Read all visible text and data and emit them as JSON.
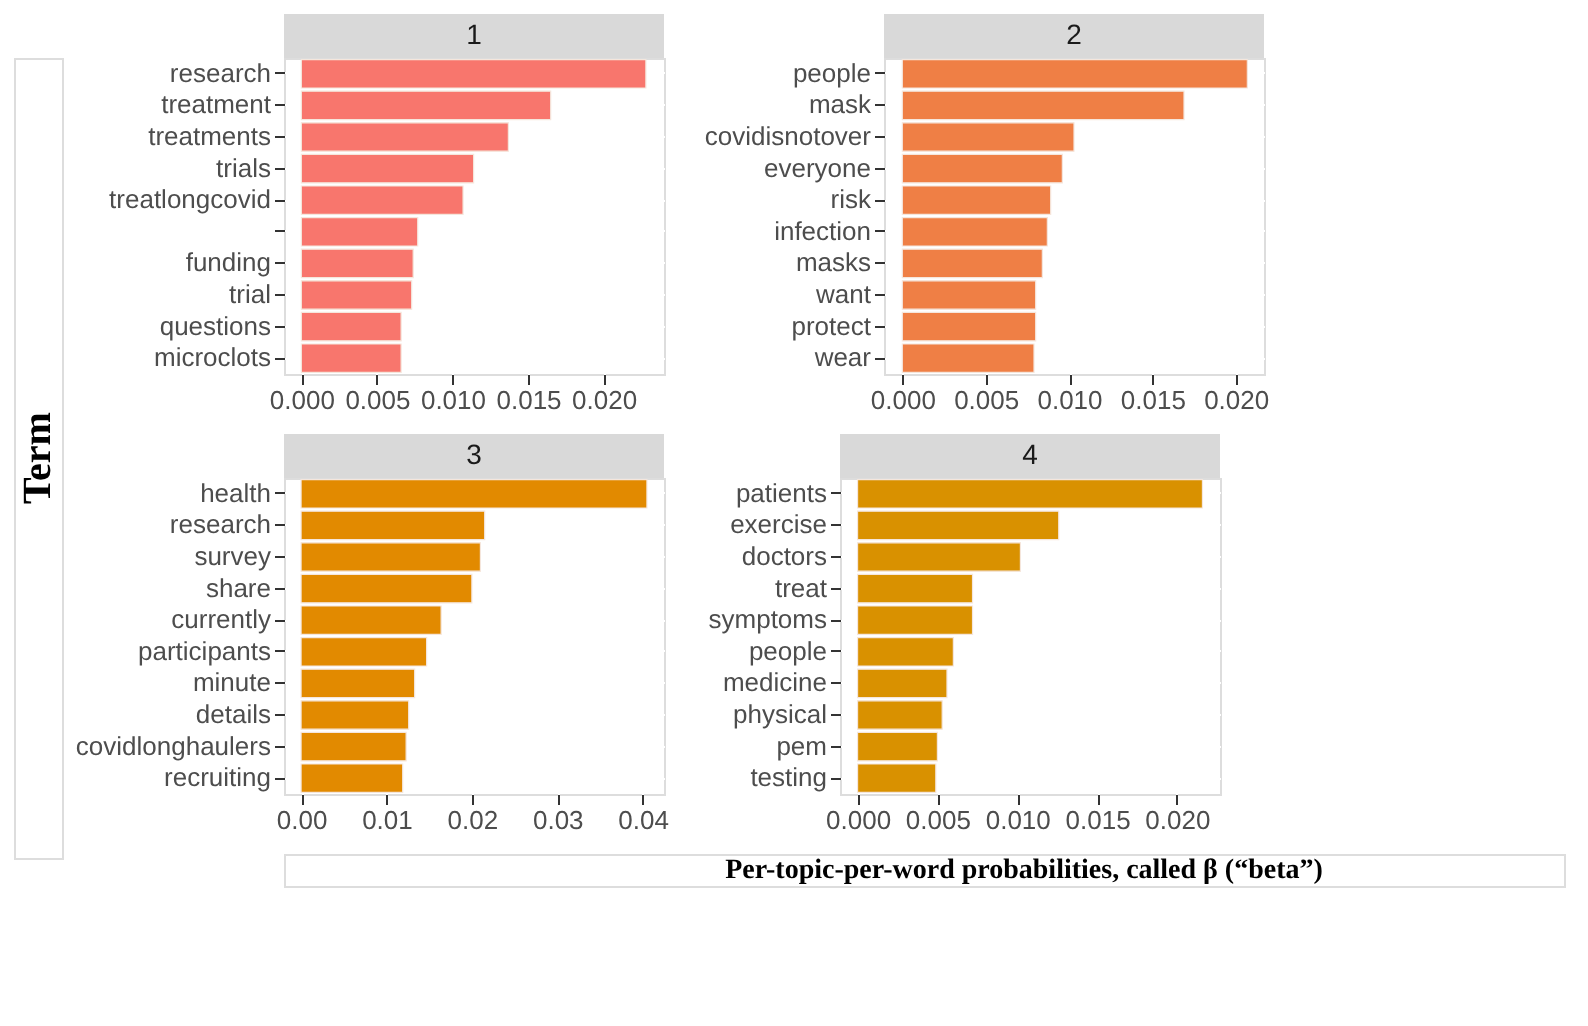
{
  "chart_data": [
    {
      "type": "bar",
      "orientation": "horizontal",
      "title": "1",
      "ylabel": "Term",
      "categories": [
        "research",
        "treatment",
        "treatments",
        "trials",
        "treatlongcovid",
        null,
        "funding",
        "trial",
        "questions",
        "microclots"
      ],
      "values": [
        0.0228,
        0.0165,
        0.0137,
        0.0114,
        0.0107,
        0.0077,
        0.0074,
        0.0073,
        0.0066,
        0.0066
      ],
      "color": "#f8766d",
      "xlim": [
        -0.00115,
        0.024
      ],
      "xticks": [
        {
          "value": 0,
          "label": "0.000"
        },
        0.005,
        {
          "value": 0.01,
          "label": "0.010"
        },
        0.015,
        {
          "value": 0.02,
          "label": "0.020"
        }
      ],
      "grid": true
    },
    {
      "type": "bar",
      "orientation": "horizontal",
      "title": "2",
      "categories": [
        "people",
        "mask",
        "covidisnotover",
        "everyone",
        "risk",
        "infection",
        "masks",
        "want",
        "protect",
        "wear"
      ],
      "values": [
        0.0207,
        0.0169,
        0.0103,
        0.0096,
        0.0089,
        0.0087,
        0.0084,
        0.008,
        0.008,
        0.0079
      ],
      "color": "#ef7f45",
      "xlim": [
        -0.0011,
        0.0217
      ],
      "xticks": [
        {
          "value": 0,
          "label": "0.000"
        },
        0.005,
        {
          "value": 0.01,
          "label": "0.010"
        },
        0.015,
        {
          "value": 0.02,
          "label": "0.020"
        }
      ],
      "grid": true
    },
    {
      "type": "bar",
      "orientation": "horizontal",
      "title": "3",
      "categories": [
        "health",
        "research",
        "survey",
        "share",
        "currently",
        "participants",
        "minute",
        "details",
        "covidlonghaulers",
        "recruiting"
      ],
      "values": [
        0.0405,
        0.0215,
        0.021,
        0.02,
        0.0164,
        0.0147,
        0.0133,
        0.0126,
        0.0123,
        0.0119
      ],
      "color": "#e28a00",
      "xlim": [
        -0.002,
        0.0425
      ],
      "xticks": [
        {
          "value": 0,
          "label": "0.00"
        },
        0.01,
        0.02,
        0.03,
        0.04
      ],
      "grid": true
    },
    {
      "type": "bar",
      "orientation": "horizontal",
      "title": "4",
      "xlabel": "Per-topic-per-word probabilities, called β (“beta”)",
      "categories": [
        "patients",
        "exercise",
        "doctors",
        "treat",
        "symptoms",
        "people",
        "medicine",
        "physical",
        "pem",
        "testing"
      ],
      "values": [
        0.0216,
        0.0126,
        0.0102,
        0.0072,
        0.0072,
        0.006,
        0.0056,
        0.0053,
        0.005,
        0.0049
      ],
      "color": "#d99100",
      "xlim": [
        -0.0011,
        0.0227
      ],
      "xticks": [
        {
          "value": 0,
          "label": "0.000"
        },
        0.005,
        {
          "value": 0.01,
          "label": "0.010"
        },
        0.015,
        {
          "value": 0.02,
          "label": "0.020"
        }
      ],
      "grid": true
    }
  ]
}
